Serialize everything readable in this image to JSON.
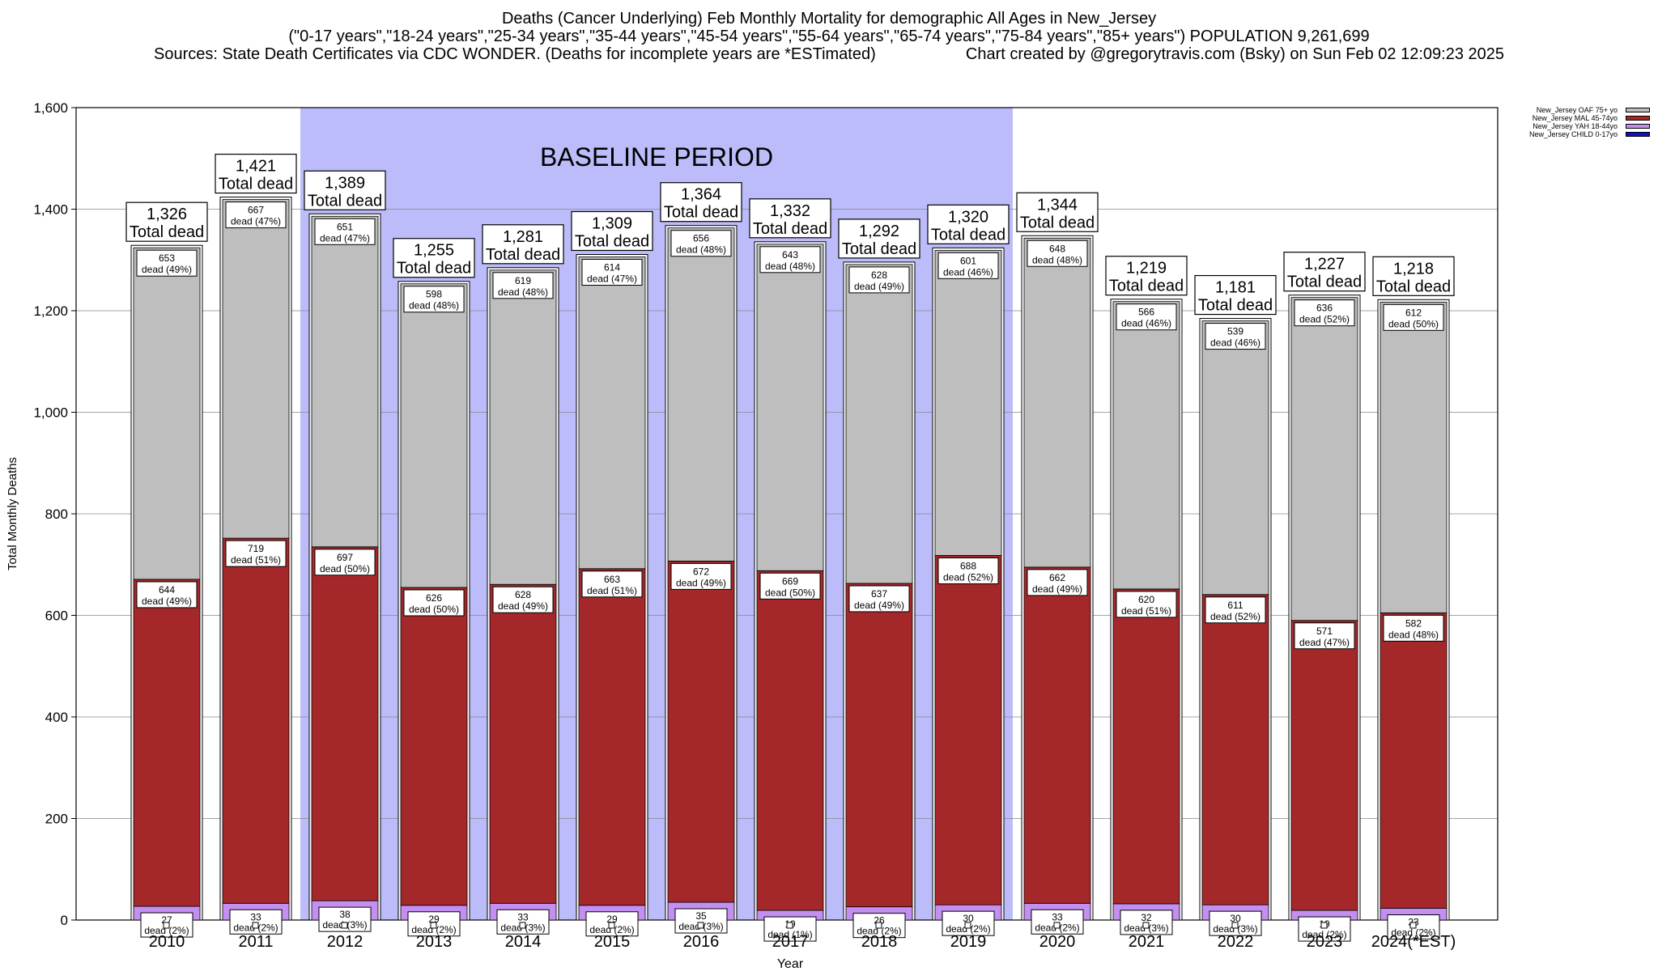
{
  "header": {
    "title": "Deaths (Cancer Underlying) Feb Monthly Mortality for demographic All Ages in New_Jersey",
    "subtitle": "(\"0-17 years\",\"18-24 years\",\"25-34 years\",\"35-44 years\",\"45-54 years\",\"55-64 years\",\"65-74 years\",\"75-84 years\",\"85+ years\") POPULATION 9,261,699",
    "sources": "Sources: State Death Certificates via CDC WONDER. (Deaths for incomplete years are *ESTimated)",
    "credit": "Chart created by @gregorytravis.com (Bsky) on Sun Feb 02 12:09:23 2025"
  },
  "colors": {
    "oaf": "#bebebe",
    "mal": "#a4282a",
    "yah": "#c38ff0",
    "child": "#1010c8",
    "baseline": "#bcbcfa"
  },
  "legend": [
    {
      "label": "New_Jersey OAF 75+ yo",
      "color": "#bebebe"
    },
    {
      "label": "New_Jersey MAL 45-74yo",
      "color": "#a4282a"
    },
    {
      "label": "New_Jersey YAH 18-44yo",
      "color": "#c38ff0"
    },
    {
      "label": "New_Jersey CHILD 0-17yo",
      "color": "#1010c8"
    }
  ],
  "chart_data": {
    "type": "bar",
    "stacked": true,
    "xlabel": "Year",
    "ylabel": "Total Monthly Deaths",
    "ylim": [
      0,
      1600
    ],
    "yticks": [
      0,
      200,
      400,
      600,
      800,
      1000,
      1200,
      1400,
      1600
    ],
    "ytick_labels": [
      "0",
      "200",
      "400",
      "600",
      "800",
      "1,000",
      "1,200",
      "1,400",
      "1,600"
    ],
    "grid": true,
    "legend_position": "top-right",
    "categories": [
      "2010",
      "2011",
      "2012",
      "2013",
      "2014",
      "2015",
      "2016",
      "2017",
      "2018",
      "2019",
      "2020",
      "2021",
      "2022",
      "2023",
      "2024(*EST)"
    ],
    "series": [
      {
        "name": "New_Jersey CHILD 0-17yo",
        "values": [
          0,
          0,
          0,
          0,
          0,
          0,
          0,
          0,
          0,
          0,
          0,
          0,
          0,
          0,
          0
        ]
      },
      {
        "name": "New_Jersey YAH 18-44yo",
        "values": [
          27,
          33,
          38,
          29,
          33,
          29,
          35,
          19,
          26,
          30,
          33,
          32,
          30,
          19,
          23
        ],
        "pct": [
          "2%",
          "2%",
          "3%",
          "2%",
          "3%",
          "2%",
          "3%",
          "1%",
          "2%",
          "2%",
          "2%",
          "3%",
          "3%",
          "2%",
          "2%"
        ]
      },
      {
        "name": "New_Jersey MAL 45-74yo",
        "values": [
          644,
          719,
          697,
          626,
          628,
          663,
          672,
          669,
          637,
          688,
          662,
          620,
          611,
          571,
          582
        ],
        "pct": [
          "49%",
          "51%",
          "50%",
          "50%",
          "49%",
          "51%",
          "49%",
          "50%",
          "49%",
          "52%",
          "49%",
          "51%",
          "52%",
          "47%",
          "48%"
        ]
      },
      {
        "name": "New_Jersey OAF 75+ yo",
        "values": [
          653,
          667,
          651,
          598,
          619,
          614,
          656,
          643,
          628,
          601,
          648,
          566,
          539,
          636,
          612
        ],
        "pct": [
          "49%",
          "47%",
          "47%",
          "48%",
          "48%",
          "47%",
          "48%",
          "48%",
          "49%",
          "46%",
          "48%",
          "46%",
          "46%",
          "52%",
          "50%"
        ]
      }
    ],
    "totals": [
      "1,326",
      "1,421",
      "1,389",
      "1,255",
      "1,281",
      "1,309",
      "1,364",
      "1,332",
      "1,292",
      "1,320",
      "1,344",
      "1,219",
      "1,181",
      "1,227",
      "1,218"
    ],
    "total_suffix": "Total dead",
    "dead_word": "dead",
    "annotations": [
      {
        "text": "BASELINE PERIOD",
        "from": "2012",
        "to": "2019"
      }
    ]
  }
}
